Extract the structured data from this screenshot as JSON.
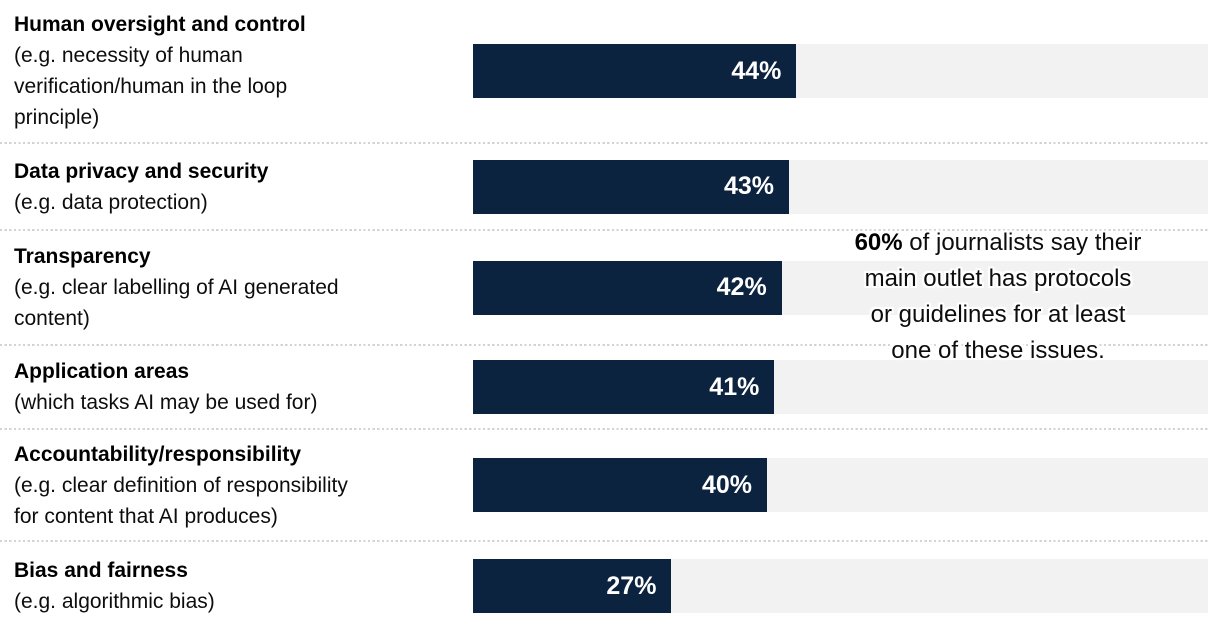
{
  "chart_data": {
    "type": "bar",
    "orientation": "horizontal",
    "unit": "%",
    "xlim": [
      0,
      100
    ],
    "grid": false,
    "legend": false,
    "categories": [
      "Human oversight and control",
      "Data privacy and security",
      "Transparency",
      "Application areas",
      "Accountability/responsibility",
      "Bias and fairness"
    ],
    "category_notes": [
      "(e.g. necessity of human verification/human in the loop principle)",
      "(e.g. data protection)",
      "(e.g. clear labelling of AI generated content)",
      "(which tasks AI may be used for)",
      "(e.g. clear definition of responsibility for content that AI produces)",
      "(e.g. algorithmic bias)"
    ],
    "values": [
      44,
      43,
      42,
      41,
      40,
      27
    ],
    "annotation": "60% of journalists say their main outlet has protocols or guidelines for at least one of these issues.",
    "bar_color": "#0c2340",
    "track_color": "#f2f2f2",
    "divider_color": "#d3d3d3",
    "value_label_color": "#ffffff"
  },
  "rows": [
    {
      "title": "Human oversight and control",
      "sub": "(e.g. necessity of human\nverification/human in the loop\nprinciple)",
      "value": 44,
      "value_label": "44%"
    },
    {
      "title": "Data privacy and security",
      "sub": "(e.g. data protection)",
      "value": 43,
      "value_label": "43%"
    },
    {
      "title": "Transparency",
      "sub": "(e.g. clear labelling of AI generated\ncontent)",
      "value": 42,
      "value_label": "42%"
    },
    {
      "title": "Application areas",
      "sub": "(which tasks AI may be used for)",
      "value": 41,
      "value_label": "41%"
    },
    {
      "title": "Accountability/responsibility",
      "sub": "(e.g. clear definition of responsibility\nfor content that AI produces)",
      "value": 40,
      "value_label": "40%"
    },
    {
      "title": "Bias and fairness",
      "sub": "(e.g. algorithmic bias)",
      "value": 27,
      "value_label": "27%"
    }
  ],
  "annotation": {
    "bold": "60%",
    "lines": [
      "of journalists say their",
      "main outlet has protocols",
      "or guidelines for at least",
      "one of these issues."
    ]
  }
}
